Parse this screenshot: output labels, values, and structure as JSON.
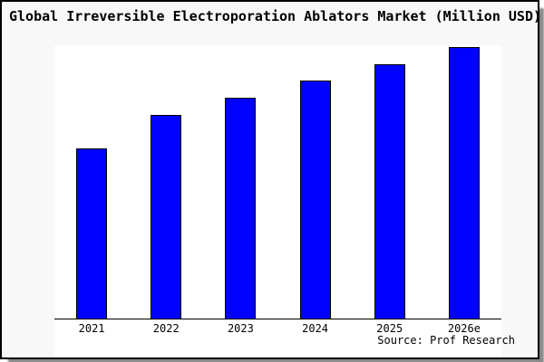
{
  "figure": {
    "title": "Global Irreversible Electroporation Ablators Market (Million USD)",
    "source_note": "Source: Prof Research"
  },
  "colors": {
    "bar_fill": "#0000ff",
    "bar_border": "#000000",
    "figure_bg": "#f8f8f8",
    "plot_bg": "#ffffff",
    "axis": "#000000",
    "text": "#000000",
    "frame_border": "#000000",
    "shadow": "#8a8a8a"
  },
  "chart_data": {
    "type": "bar",
    "title": "Global Irreversible Electroporation Ablators Market (Million USD)",
    "categories": [
      "2021",
      "2022",
      "2023",
      "2024",
      "2025",
      "2026e"
    ],
    "values": [
      62.8,
      75.1,
      81.5,
      87.8,
      93.7,
      100
    ],
    "values_note": "No y-axis scale or data labels are shown in the chart; values are relative bar heights expressed as percent of the tallest (2026e) bar",
    "xlabel": "",
    "ylabel": "",
    "ylim": [
      0,
      100.8
    ],
    "grid": false,
    "legend": false,
    "y_axis_ticks": [],
    "annotations": [
      "Source: Prof Research"
    ]
  }
}
